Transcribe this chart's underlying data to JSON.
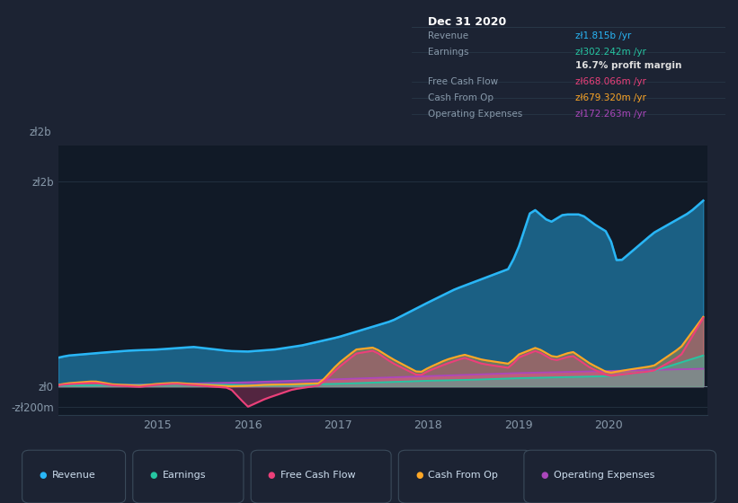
{
  "bg_color": "#1c2333",
  "plot_bg_color": "#111a27",
  "grid_color": "#2a3a4a",
  "text_color": "#8899aa",
  "title_text_color": "#ffffff",
  "ylim": [
    -280000000,
    2350000000
  ],
  "yticks_vals": [
    -200000000,
    0,
    2000000000
  ],
  "ytick_labels": [
    "-zł200m",
    "zł0",
    "zł2b"
  ],
  "ylabel_top": "zł2b",
  "xtick_positions": [
    2015,
    2016,
    2017,
    2018,
    2019,
    2020
  ],
  "xtick_labels": [
    "2015",
    "2016",
    "2017",
    "2018",
    "2019",
    "2020"
  ],
  "series_colors": {
    "revenue": "#29b6f6",
    "earnings": "#26c6a2",
    "free_cash_flow": "#ec407a",
    "cash_from_op": "#ffa726",
    "operating_expenses": "#ab47bc"
  },
  "legend_items": [
    {
      "label": "Revenue",
      "color": "#29b6f6"
    },
    {
      "label": "Earnings",
      "color": "#26c6a2"
    },
    {
      "label": "Free Cash Flow",
      "color": "#ec407a"
    },
    {
      "label": "Cash From Op",
      "color": "#ffa726"
    },
    {
      "label": "Operating Expenses",
      "color": "#ab47bc"
    }
  ],
  "tooltip_bg": "#0a0e18",
  "tooltip_border": "#2a3a4a",
  "tooltip_title": "Dec 31 2020",
  "tooltip_rows": [
    {
      "label": "Revenue",
      "value": "zł1.815b /yr",
      "label_color": "#8899aa",
      "value_color": "#29b6f6"
    },
    {
      "label": "Earnings",
      "value": "zł302.242m /yr",
      "label_color": "#8899aa",
      "value_color": "#26c6a2"
    },
    {
      "label": "",
      "value": "16.7% profit margin",
      "label_color": "#8899aa",
      "value_color": "#dddddd"
    },
    {
      "label": "Free Cash Flow",
      "value": "zł668.066m /yr",
      "label_color": "#8899aa",
      "value_color": "#ec407a"
    },
    {
      "label": "Cash From Op",
      "value": "zł679.320m /yr",
      "label_color": "#8899aa",
      "value_color": "#ffa726"
    },
    {
      "label": "Operating Expenses",
      "value": "zł172.263m /yr",
      "label_color": "#8899aa",
      "value_color": "#ab47bc"
    }
  ]
}
